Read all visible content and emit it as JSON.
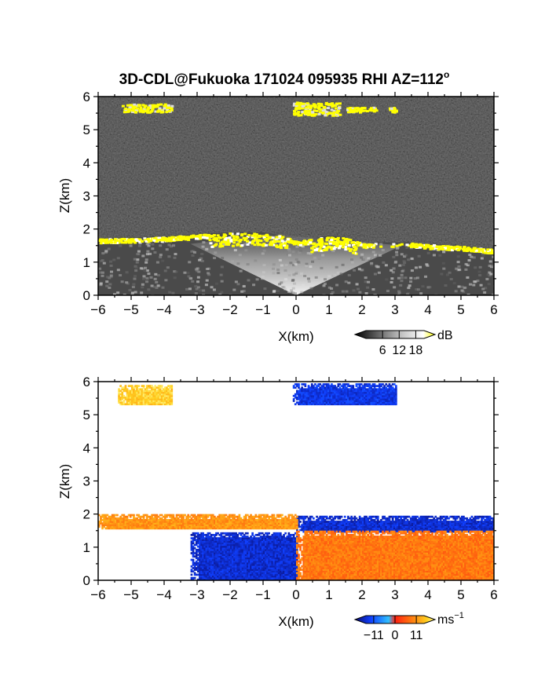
{
  "figure": {
    "title_prefix": "3D-CDL@Fukuoka 171024 095935 RHI AZ=112",
    "title_superscript": "o"
  },
  "chart_data": [
    {
      "type": "heatmap",
      "quantity": "backscatter intensity",
      "xlabel": "X(km)",
      "ylabel": "Z(km)",
      "xlim": [
        -6,
        6
      ],
      "ylim": [
        0,
        6
      ],
      "xticks": [
        "−6",
        "−5",
        "−4",
        "−3",
        "−2",
        "−1",
        "0",
        "1",
        "2",
        "3",
        "4",
        "5",
        "6"
      ],
      "yticks": [
        "0",
        "1",
        "2",
        "3",
        "4",
        "5",
        "6"
      ],
      "colorbar": {
        "unit": "dB",
        "ticks": [
          "6",
          "12",
          "18"
        ],
        "tick_values": [
          6,
          12,
          18
        ],
        "range": [
          0,
          21
        ],
        "colors": [
          "#000000",
          "#ffffff",
          "#ffff00"
        ]
      },
      "layer_top_profile": {
        "x": [
          -6,
          -5,
          -4,
          -3,
          -2,
          -1,
          -0.5,
          0,
          0.5,
          1,
          1.5,
          2,
          2.5,
          3,
          3.5,
          4,
          5,
          6
        ],
        "z": [
          1.72,
          1.74,
          1.78,
          1.85,
          1.9,
          1.9,
          1.82,
          1.65,
          1.72,
          1.8,
          1.75,
          1.58,
          1.6,
          1.6,
          1.6,
          1.55,
          1.5,
          1.4
        ]
      },
      "aloft_patches": [
        {
          "x": [
            -5.3,
            -3.8
          ],
          "z": [
            5.55,
            5.8
          ]
        },
        {
          "x": [
            -0.1,
            1.3
          ],
          "z": [
            5.45,
            5.85
          ]
        },
        {
          "x": [
            1.5,
            2.4
          ],
          "z": [
            5.55,
            5.7
          ]
        },
        {
          "x": [
            2.8,
            3.0
          ],
          "z": [
            5.55,
            5.7
          ]
        }
      ]
    },
    {
      "type": "heatmap",
      "quantity": "Doppler velocity",
      "xlabel": "X(km)",
      "ylabel": "Z(km)",
      "xlim": [
        -6,
        6
      ],
      "ylim": [
        0,
        6
      ],
      "xticks": [
        "−6",
        "−5",
        "−4",
        "−3",
        "−2",
        "−1",
        "0",
        "1",
        "2",
        "3",
        "4",
        "5",
        "6"
      ],
      "yticks": [
        "0",
        "1",
        "2",
        "3",
        "4",
        "5",
        "6"
      ],
      "colorbar": {
        "unit": "ms",
        "unit_exponent": "−1",
        "ticks": [
          "−11",
          "0",
          "11"
        ],
        "tick_values": [
          -11,
          0,
          11
        ],
        "range": [
          -15,
          15
        ],
        "colors": [
          "#0a0a6e",
          "#1040ff",
          "#30c0ff",
          "#ff2010",
          "#ff8010",
          "#ffd020",
          "#ffffa0"
        ]
      },
      "regions": [
        {
          "description_value_ms": -11,
          "x": [
            -3.2,
            0.0
          ],
          "z": [
            0.0,
            1.45
          ]
        },
        {
          "description_value_ms": -11,
          "x": [
            0.0,
            6.0
          ],
          "z": [
            1.45,
            1.95
          ]
        },
        {
          "description_value_ms": 8,
          "x": [
            -6.0,
            0.0
          ],
          "z": [
            1.55,
            2.0
          ]
        },
        {
          "description_value_ms": 6,
          "x": [
            0.0,
            6.0
          ],
          "z": [
            0.0,
            1.5
          ]
        },
        {
          "description_value_ms": 12,
          "x": [
            -5.4,
            -3.8
          ],
          "z": [
            5.3,
            5.85
          ]
        },
        {
          "description_value_ms": -10,
          "x": [
            -0.1,
            3.0
          ],
          "z": [
            5.3,
            5.9
          ]
        }
      ]
    }
  ]
}
